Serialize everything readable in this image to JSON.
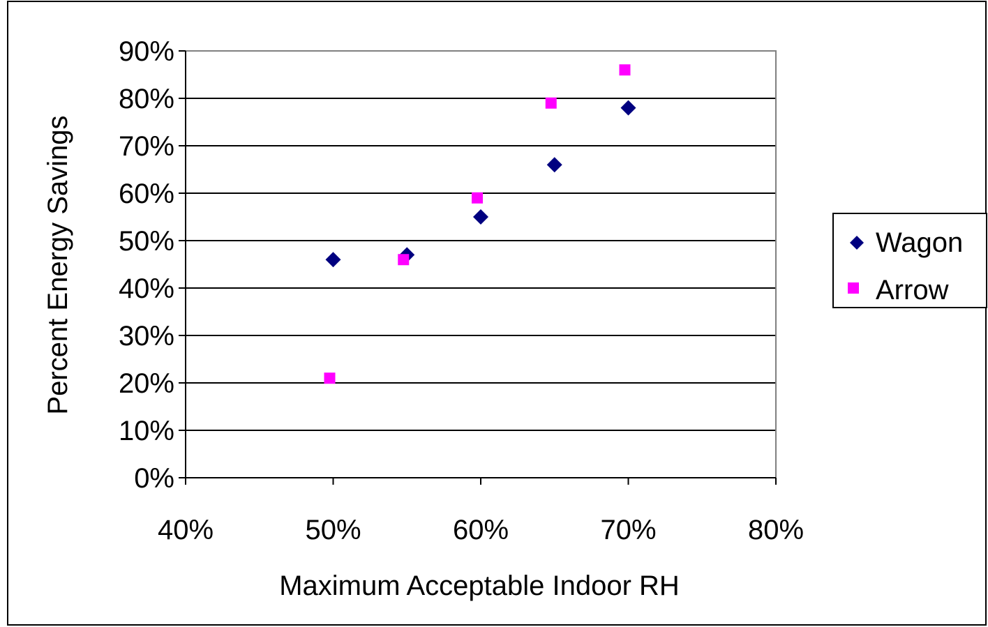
{
  "chart_data": {
    "type": "scatter",
    "title": "",
    "xlabel": "Maximum Acceptable Indoor RH",
    "ylabel": "Percent Energy Savings",
    "xlim": [
      0.4,
      0.8
    ],
    "ylim": [
      0,
      0.9
    ],
    "x_ticks": [
      "40%",
      "50%",
      "60%",
      "70%",
      "80%"
    ],
    "y_ticks": [
      "0%",
      "10%",
      "20%",
      "30%",
      "40%",
      "50%",
      "60%",
      "70%",
      "80%",
      "90%"
    ],
    "grid": "horizontal",
    "legend_position": "right",
    "series": [
      {
        "name": "Wagon",
        "marker": "diamond",
        "color": "#000080",
        "points": [
          [
            0.5,
            0.46
          ],
          [
            0.55,
            0.47
          ],
          [
            0.6,
            0.55
          ],
          [
            0.65,
            0.66
          ],
          [
            0.7,
            0.78
          ]
        ]
      },
      {
        "name": "Arrow",
        "marker": "square",
        "color": "#FF00FF",
        "points": [
          [
            0.5,
            0.21
          ],
          [
            0.55,
            0.46
          ],
          [
            0.6,
            0.59
          ],
          [
            0.65,
            0.79
          ],
          [
            0.7,
            0.86
          ]
        ]
      }
    ]
  }
}
